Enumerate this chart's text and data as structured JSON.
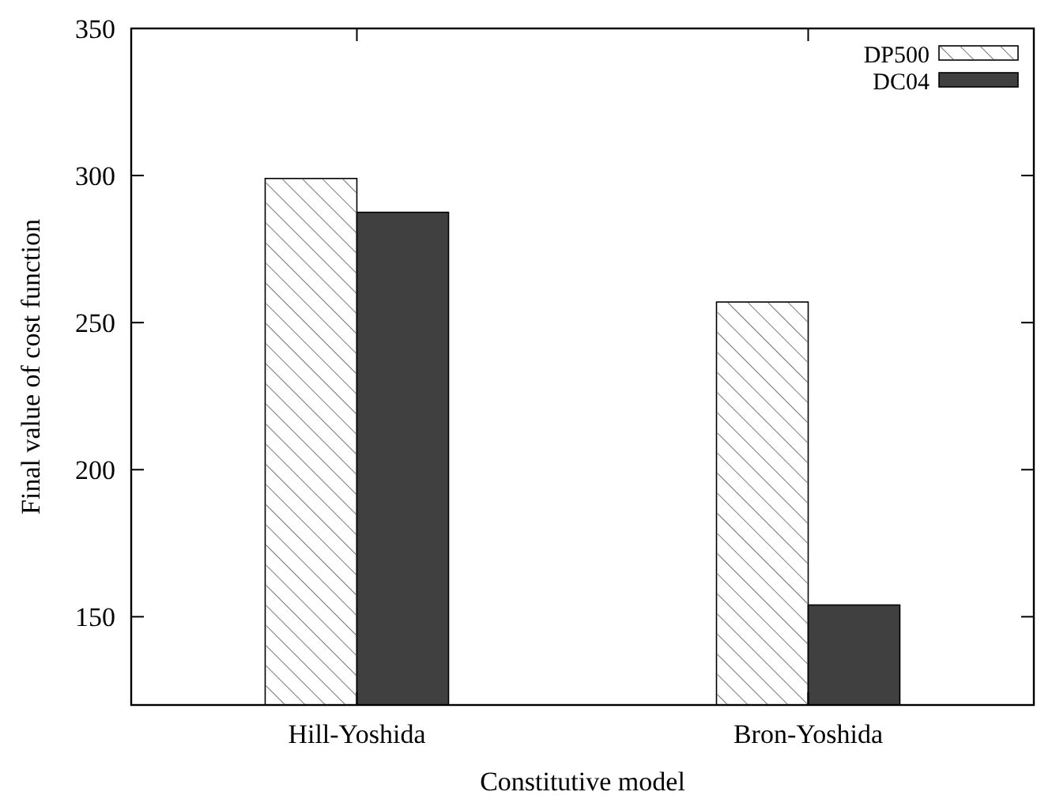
{
  "chart_data": {
    "type": "bar",
    "xlabel": "Constitutive model",
    "ylabel": "Final value of cost function",
    "categories": [
      "Hill-Yoshida",
      "Bron-Yoshida"
    ],
    "series": [
      {
        "name": "DP500",
        "color": "#ffffff",
        "values": [
          299,
          257
        ]
      },
      {
        "name": "DC04",
        "color": "#404040",
        "values": [
          287.5,
          154
        ]
      }
    ],
    "ylim": [
      120,
      350
    ],
    "yticks": [
      150,
      200,
      250,
      300,
      350
    ],
    "legend": "top right",
    "grid": false
  }
}
